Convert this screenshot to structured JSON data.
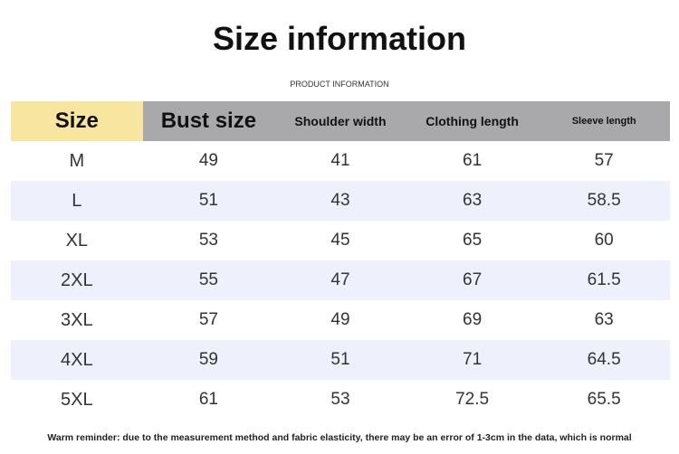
{
  "header": {
    "title": "Size information",
    "subtitle": "PRODUCT INFORMATION"
  },
  "table": {
    "columns": [
      "Size",
      "Bust size",
      "Shoulder width",
      "Clothing length",
      "Sleeve length"
    ],
    "rows": [
      [
        "M",
        49,
        41,
        61,
        57
      ],
      [
        "L",
        51,
        43,
        63,
        58.5
      ],
      [
        "XL",
        53,
        45,
        65,
        60
      ],
      [
        "2XL",
        55,
        47,
        67,
        61.5
      ],
      [
        "3XL",
        57,
        49,
        69,
        63
      ],
      [
        "4XL",
        59,
        51,
        71,
        64.5
      ],
      [
        "5XL",
        61,
        53,
        72.5,
        65.5
      ]
    ]
  },
  "footer": {
    "note": "Warm reminder: due to the measurement method and fabric elasticity, there may be an error of 1-3cm in the data, which is normal"
  }
}
